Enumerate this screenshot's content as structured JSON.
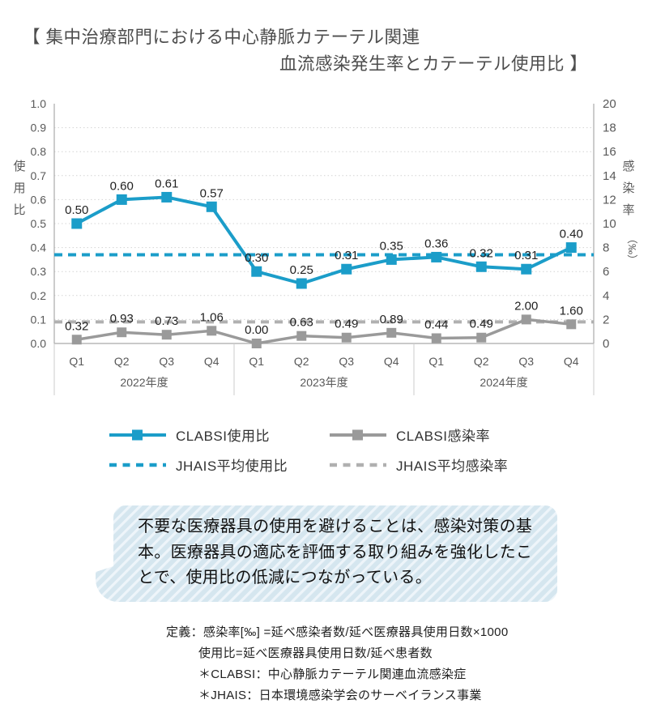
{
  "title": {
    "line1": "【 集中治療部門における中心静脈カテーテル関連",
    "line2": "血流感染発生率とカテーテル使用比 】"
  },
  "colors": {
    "blue": "#1b9dc9",
    "gray": "#9a9a9a",
    "gray_dashed": "#b0b0b0",
    "grid": "#d4d4d4",
    "axis": "#ababab",
    "separator": "#cccccc",
    "tick_text": "#595959",
    "data_label": "#1f1f1f",
    "callout_bg": "#d5e6ef",
    "callout_stripe": "#eef5fa"
  },
  "chart_data": {
    "type": "line",
    "categories": [
      "Q1",
      "Q2",
      "Q3",
      "Q4",
      "Q1",
      "Q2",
      "Q3",
      "Q4",
      "Q1",
      "Q2",
      "Q3",
      "Q4"
    ],
    "group_labels": [
      "2022年度",
      "2023年度",
      "2024年度"
    ],
    "left_axis": {
      "label_chars": [
        "使",
        "用",
        "比"
      ],
      "unit": "",
      "min": 0,
      "max": 1.0,
      "ticks": [
        "0.0",
        "0.1",
        "0.2",
        "0.3",
        "0.4",
        "0.5",
        "0.6",
        "0.7",
        "0.8",
        "0.9",
        "1.0"
      ]
    },
    "right_axis": {
      "label_chars": [
        "感",
        "染",
        "率"
      ],
      "unit": "（‰）",
      "min": 0,
      "max": 20,
      "ticks": [
        "0",
        "2",
        "4",
        "6",
        "8",
        "10",
        "12",
        "14",
        "16",
        "18",
        "20"
      ]
    },
    "series": [
      {
        "name": "CLABSI使用比",
        "axis": "left",
        "color_key": "blue",
        "style": "solid",
        "values": [
          0.5,
          0.6,
          0.61,
          0.57,
          0.3,
          0.25,
          0.31,
          0.35,
          0.36,
          0.32,
          0.31,
          0.4
        ],
        "labels": [
          "0.50",
          "0.60",
          "0.61",
          "0.57",
          "0.30",
          "0.25",
          "0.31",
          "0.35",
          "0.36",
          "0.32",
          "0.31",
          "0.40"
        ]
      },
      {
        "name": "CLABSI感染率",
        "axis": "right",
        "color_key": "gray",
        "style": "solid",
        "values": [
          0.32,
          0.93,
          0.73,
          1.06,
          0.0,
          0.63,
          0.49,
          0.89,
          0.44,
          0.49,
          2.0,
          1.6
        ],
        "labels": [
          "0.32",
          "0.93",
          "0.73",
          "1.06",
          "0.00",
          "0.63",
          "0.49",
          "0.89",
          "0.44",
          "0.49",
          "2.00",
          "1.60"
        ]
      }
    ],
    "reference_lines": [
      {
        "name": "JHAIS平均使用比",
        "axis": "left",
        "value": 0.37,
        "color_key": "blue"
      },
      {
        "name": "JHAIS平均感染率",
        "axis": "right",
        "value": 1.8,
        "color_key": "gray_dashed"
      }
    ],
    "grid": "dotted",
    "legend_position": "bottom"
  },
  "legend": [
    {
      "label": "CLABSI使用比",
      "swatch": "blue-solid-square"
    },
    {
      "label": "CLABSI感染率",
      "swatch": "gray-solid-square"
    },
    {
      "label": "JHAIS平均使用比",
      "swatch": "blue-dashed"
    },
    {
      "label": "JHAIS平均感染率",
      "swatch": "gray-dashed"
    }
  ],
  "callout": {
    "text": "不要な医療器具の使用を避けることは、感染対策の基本。医療器具の適応を評価する取り組みを強化したことで、使用比の低減につながっている。"
  },
  "footnotes": [
    "定義：感染率[‰] =延べ感染者数/延べ医療器具使用日数×1000",
    "使用比=延べ医療器具使用日数/延べ患者数",
    "＊CLABSI：中心静脈カテーテル関連血流感染症",
    "＊JHAIS：日本環境感染学会のサーベイランス事業"
  ]
}
